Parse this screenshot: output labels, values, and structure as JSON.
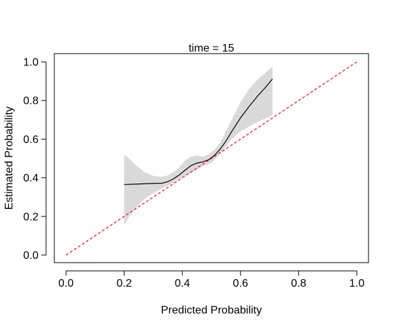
{
  "chart_data": {
    "type": "line",
    "title": "time = 15",
    "xlabel": "Predicted Probability",
    "ylabel": "Estimated Probability",
    "xlim": [
      0.0,
      1.0
    ],
    "ylim": [
      0.0,
      1.0
    ],
    "xticks": [
      0.0,
      0.2,
      0.4,
      0.6,
      0.8,
      1.0
    ],
    "yticks": [
      0.0,
      0.2,
      0.4,
      0.6,
      0.8,
      1.0
    ],
    "xtick_labels": [
      "0.0",
      "0.2",
      "0.4",
      "0.6",
      "0.8",
      "1.0"
    ],
    "ytick_labels": [
      "0.0",
      "0.2",
      "0.4",
      "0.6",
      "0.8",
      "1.0"
    ],
    "grid": false,
    "series": [
      {
        "role": "estimate",
        "style": "solid",
        "color": "#000000",
        "x": [
          0.2,
          0.25,
          0.3,
          0.33,
          0.35,
          0.37,
          0.39,
          0.41,
          0.43,
          0.45,
          0.47,
          0.49,
          0.51,
          0.53,
          0.55,
          0.57,
          0.6,
          0.63,
          0.66,
          0.69,
          0.71
        ],
        "y": [
          0.365,
          0.368,
          0.371,
          0.372,
          0.38,
          0.395,
          0.415,
          0.44,
          0.463,
          0.476,
          0.482,
          0.493,
          0.515,
          0.548,
          0.59,
          0.64,
          0.71,
          0.77,
          0.825,
          0.875,
          0.912
        ]
      },
      {
        "role": "reference",
        "style": "dashed",
        "color": "#ff0000",
        "x": [
          0.0,
          1.0
        ],
        "y": [
          0.0,
          1.0
        ]
      }
    ],
    "band": {
      "role": "confidence-band",
      "color": "#d9d9d9",
      "x": [
        0.2,
        0.22,
        0.24,
        0.27,
        0.3,
        0.33,
        0.35,
        0.37,
        0.39,
        0.41,
        0.43,
        0.45,
        0.47,
        0.49,
        0.51,
        0.53,
        0.55,
        0.57,
        0.6,
        0.63,
        0.66,
        0.69,
        0.71
      ],
      "lower": [
        0.155,
        0.205,
        0.245,
        0.29,
        0.32,
        0.345,
        0.36,
        0.375,
        0.395,
        0.41,
        0.425,
        0.44,
        0.46,
        0.47,
        0.49,
        0.525,
        0.56,
        0.6,
        0.64,
        0.665,
        0.69,
        0.71,
        0.725
      ],
      "upper": [
        0.52,
        0.495,
        0.465,
        0.43,
        0.41,
        0.405,
        0.412,
        0.43,
        0.455,
        0.49,
        0.51,
        0.515,
        0.51,
        0.52,
        0.545,
        0.58,
        0.64,
        0.7,
        0.79,
        0.86,
        0.91,
        0.95,
        0.975
      ]
    }
  }
}
